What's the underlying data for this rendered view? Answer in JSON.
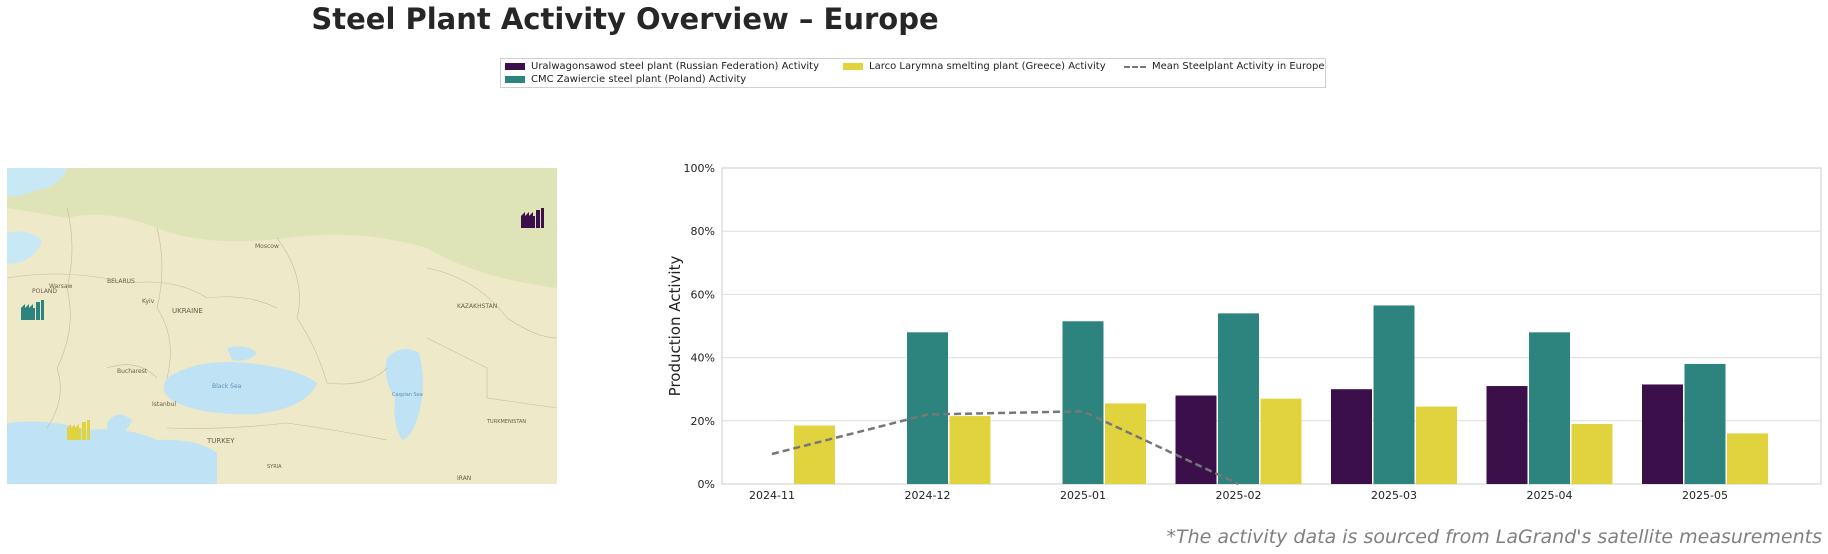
{
  "title": "Steel Plant Activity Overview – Europe",
  "legend": {
    "items": [
      {
        "label": "Uralwagonsawod steel plant (Russian Federation) Activity",
        "color": "#3b0f4a",
        "kind": "bar"
      },
      {
        "label": "CMC Zawiercie steel plant (Poland) Activity",
        "color": "#2d837d",
        "kind": "bar"
      },
      {
        "label": "Larco Larymna smelting plant (Greece) Activity",
        "color": "#e1d33d",
        "kind": "bar"
      },
      {
        "label": "Mean Steelplant Activity in Europe",
        "color": "#777777",
        "kind": "dashed-line"
      }
    ]
  },
  "map": {
    "labels": {
      "kazakhstan": "KAZAKHSTAN",
      "ukraine": "UKRAINE",
      "turkey": "TURKEY",
      "black_sea": "Black Sea",
      "caspian": "Caspian Sea",
      "belarus": "BELARUS",
      "poland": "POLAND",
      "turkmenistan": "TURKMENISTAN",
      "iran": "IRAN",
      "syria": "SYRIA",
      "moscow": "Moscow",
      "kyiv": "Kyiv",
      "istanbul": "Istanbul",
      "warsaw": "Warsaw",
      "bucharest": "Bucharest"
    },
    "markers": [
      {
        "plant": "Uralwagonsawod",
        "color": "#3b0f4a",
        "icon": "factory-icon"
      },
      {
        "plant": "CMC Zawiercie",
        "color": "#2d837d",
        "icon": "factory-icon"
      },
      {
        "plant": "Larco Larymna",
        "color": "#e1d33d",
        "icon": "factory-icon"
      }
    ]
  },
  "chart_data": {
    "type": "bar",
    "ylabel": "Production Activity",
    "xlabel": "",
    "ylim": [
      0,
      100
    ],
    "yticks": [
      "0%",
      "20%",
      "40%",
      "60%",
      "80%",
      "100%"
    ],
    "categories": [
      "2024-11",
      "2024-12",
      "2025-01",
      "2025-02",
      "2025-03",
      "2025-04",
      "2025-05"
    ],
    "grid": true,
    "series": [
      {
        "name": "Uralwagonsawod steel plant (Russian Federation) Activity",
        "color": "#3b0f4a",
        "values": [
          null,
          null,
          null,
          28,
          30,
          31,
          31.5
        ]
      },
      {
        "name": "CMC Zawiercie steel plant (Poland) Activity",
        "color": "#2d837d",
        "values": [
          null,
          48,
          51.5,
          54,
          56.5,
          48,
          38
        ]
      },
      {
        "name": "Larco Larymna smelting plant (Greece) Activity",
        "color": "#e1d33d",
        "values": [
          18.5,
          21.5,
          25.5,
          27,
          24.5,
          19,
          16
        ]
      }
    ],
    "mean_line": {
      "name": "Mean Steelplant Activity in Europe",
      "color": "#777777",
      "values": [
        9.5,
        22,
        23,
        0,
        null,
        null,
        null
      ]
    }
  },
  "footnote": "*The activity data is sourced from LaGrand's satellite measurements"
}
